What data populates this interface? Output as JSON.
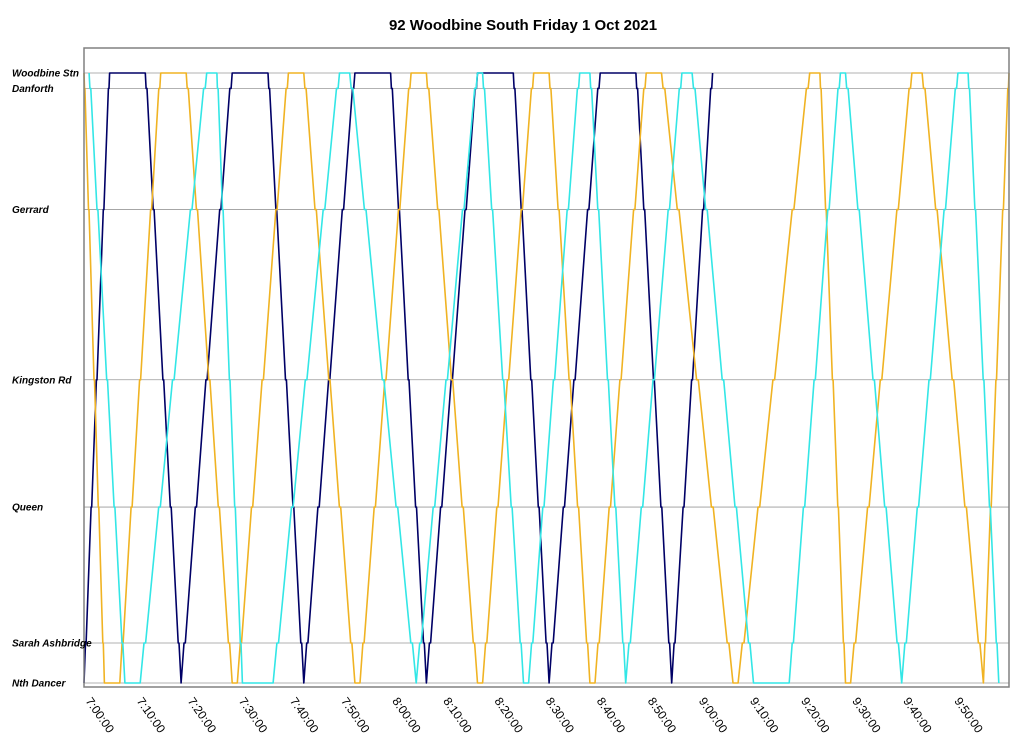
{
  "colors": {
    "navy": "#000066",
    "gold": "#f0b323",
    "cyan": "#33e6e6",
    "grid": "#999999",
    "frame": "#808080"
  },
  "chart_data": {
    "type": "line",
    "title": "92 Woodbine South Friday 1 Oct 2021",
    "xlabel": "",
    "ylabel": "",
    "x_range": [
      "6:59:00",
      "10:00:00"
    ],
    "x_ticks": [
      "7:00:00",
      "7:10:00",
      "7:20:00",
      "7:30:00",
      "7:40:00",
      "7:50:00",
      "8:00:00",
      "8:10:00",
      "8:20:00",
      "8:30:00",
      "8:40:00",
      "8:50:00",
      "9:00:00",
      "9:10:00",
      "9:20:00",
      "9:30:00",
      "9:40:00",
      "9:50:00"
    ],
    "y_axis": "stop (Woodbine Stn at top, Nth Dancer at bottom)",
    "stops": [
      {
        "name": "Woodbine Stn",
        "position": 0.0
      },
      {
        "name": "Danforth",
        "position": 0.048
      },
      {
        "name": "Gerrard",
        "position": 0.427
      },
      {
        "name": "Kingston Rd",
        "position": 0.959
      },
      {
        "name": "Queen",
        "position": 1.357
      },
      {
        "name": "Sarah Ashbridge",
        "position": 1.782
      },
      {
        "name": "Nth Dancer",
        "position": 1.907
      }
    ],
    "grid": true,
    "legend": "none",
    "series": [
      {
        "color_key": "navy",
        "trips": [
          {
            "direction": "up",
            "start": "6:59:00",
            "end": "7:04:00"
          },
          {
            "direction": "down",
            "start": "7:11:00",
            "end": "7:18:00"
          },
          {
            "direction": "up",
            "start": "7:18:00",
            "end": "7:28:00"
          },
          {
            "direction": "down",
            "start": "7:35:00",
            "end": "7:42:00"
          },
          {
            "direction": "up",
            "start": "7:42:00",
            "end": "7:52:00"
          },
          {
            "direction": "down",
            "start": "7:59:00",
            "end": "8:06:00"
          },
          {
            "direction": "up",
            "start": "8:06:00",
            "end": "8:16:00"
          },
          {
            "direction": "down",
            "start": "8:23:00",
            "end": "8:30:00"
          },
          {
            "direction": "up",
            "start": "8:30:00",
            "end": "8:40:00"
          },
          {
            "direction": "down",
            "start": "8:47:00",
            "end": "8:54:00"
          },
          {
            "direction": "up",
            "start": "8:54:00",
            "end": "9:02:00"
          }
        ]
      },
      {
        "color_key": "gold",
        "trips": [
          {
            "direction": "down",
            "start": "6:59:00",
            "end": "7:03:00"
          },
          {
            "direction": "up",
            "start": "7:06:00",
            "end": "7:14:00"
          },
          {
            "direction": "down",
            "start": "7:19:00",
            "end": "7:28:00"
          },
          {
            "direction": "up",
            "start": "7:29:00",
            "end": "7:39:00"
          },
          {
            "direction": "down",
            "start": "7:42:00",
            "end": "7:52:00"
          },
          {
            "direction": "up",
            "start": "7:53:00",
            "end": "8:03:00"
          },
          {
            "direction": "down",
            "start": "8:06:00",
            "end": "8:16:00"
          },
          {
            "direction": "up",
            "start": "8:17:00",
            "end": "8:27:00"
          },
          {
            "direction": "down",
            "start": "8:30:00",
            "end": "8:38:00"
          },
          {
            "direction": "up",
            "start": "8:39:00",
            "end": "8:49:00"
          },
          {
            "direction": "down",
            "start": "8:52:00",
            "end": "9:06:00"
          },
          {
            "direction": "up",
            "start": "9:07:00",
            "end": "9:21:00"
          },
          {
            "direction": "down",
            "start": "9:23:00",
            "end": "9:28:00"
          },
          {
            "direction": "up",
            "start": "9:29:00",
            "end": "9:41:00"
          },
          {
            "direction": "down",
            "start": "9:43:00",
            "end": "9:55:00"
          },
          {
            "direction": "up",
            "start": "9:55:00",
            "end": "10:00:00"
          }
        ]
      },
      {
        "color_key": "cyan",
        "trips": [
          {
            "direction": "down",
            "start": "7:00:00",
            "end": "7:07:00"
          },
          {
            "direction": "up",
            "start": "7:10:00",
            "end": "7:23:00"
          },
          {
            "direction": "down",
            "start": "7:25:00",
            "end": "7:30:00"
          },
          {
            "direction": "up",
            "start": "7:36:00",
            "end": "7:49:00"
          },
          {
            "direction": "down",
            "start": "7:51:00",
            "end": "8:04:00"
          },
          {
            "direction": "up",
            "start": "8:04:00",
            "end": "8:16:00"
          },
          {
            "direction": "down",
            "start": "8:17:00",
            "end": "8:25:00"
          },
          {
            "direction": "up",
            "start": "8:26:00",
            "end": "8:36:00"
          },
          {
            "direction": "down",
            "start": "8:38:00",
            "end": "8:45:00"
          },
          {
            "direction": "up",
            "start": "8:45:00",
            "end": "8:56:00"
          },
          {
            "direction": "down",
            "start": "8:58:00",
            "end": "9:10:00"
          },
          {
            "direction": "up",
            "start": "9:17:00",
            "end": "9:27:00"
          },
          {
            "direction": "down",
            "start": "9:28:00",
            "end": "9:39:00"
          },
          {
            "direction": "up",
            "start": "9:39:00",
            "end": "9:50:00"
          },
          {
            "direction": "down",
            "start": "9:52:00",
            "end": "9:58:00"
          }
        ]
      }
    ]
  }
}
